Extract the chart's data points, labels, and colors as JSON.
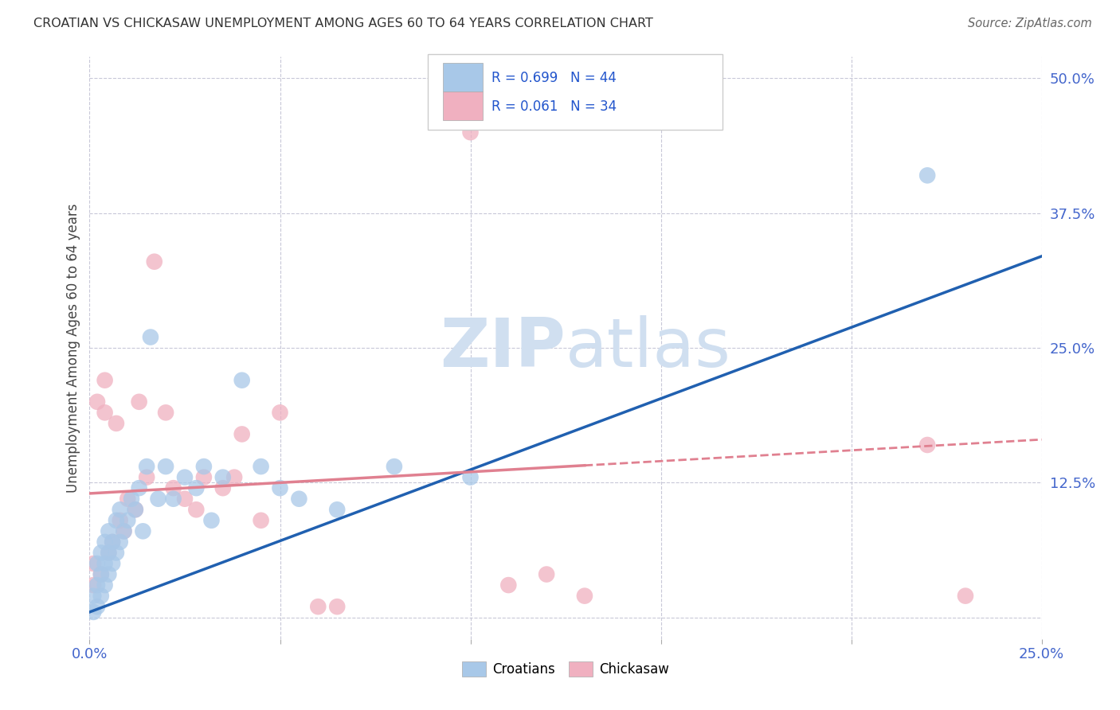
{
  "title": "CROATIAN VS CHICKASAW UNEMPLOYMENT AMONG AGES 60 TO 64 YEARS CORRELATION CHART",
  "source": "Source: ZipAtlas.com",
  "ylabel": "Unemployment Among Ages 60 to 64 years",
  "xlim": [
    0.0,
    0.25
  ],
  "ylim": [
    -0.02,
    0.52
  ],
  "xticks": [
    0.0,
    0.05,
    0.1,
    0.15,
    0.2,
    0.25
  ],
  "xtick_labels": [
    "0.0%",
    "",
    "",
    "",
    "",
    "25.0%"
  ],
  "yticks": [
    0.0,
    0.125,
    0.25,
    0.375,
    0.5
  ],
  "ytick_labels": [
    "",
    "12.5%",
    "25.0%",
    "37.5%",
    "50.0%"
  ],
  "croatian_color": "#a8c8e8",
  "chickasaw_color": "#f0b0c0",
  "croatian_line_color": "#2060b0",
  "chickasaw_line_color": "#e08090",
  "background_color": "#ffffff",
  "grid_color": "#c8c8d8",
  "watermark_color": "#d0dff0",
  "legend_R_croatian": "R = 0.699",
  "legend_N_croatian": "N = 44",
  "legend_R_chickasaw": "R = 0.061",
  "legend_N_chickasaw": "N = 34",
  "croatian_x": [
    0.001,
    0.001,
    0.002,
    0.002,
    0.002,
    0.003,
    0.003,
    0.003,
    0.004,
    0.004,
    0.004,
    0.005,
    0.005,
    0.005,
    0.006,
    0.006,
    0.007,
    0.007,
    0.008,
    0.008,
    0.009,
    0.01,
    0.011,
    0.012,
    0.013,
    0.014,
    0.015,
    0.016,
    0.018,
    0.02,
    0.022,
    0.025,
    0.028,
    0.03,
    0.032,
    0.035,
    0.04,
    0.045,
    0.05,
    0.055,
    0.065,
    0.08,
    0.1,
    0.22
  ],
  "croatian_y": [
    0.005,
    0.02,
    0.01,
    0.03,
    0.05,
    0.02,
    0.04,
    0.06,
    0.03,
    0.05,
    0.07,
    0.04,
    0.06,
    0.08,
    0.05,
    0.07,
    0.06,
    0.09,
    0.07,
    0.1,
    0.08,
    0.09,
    0.11,
    0.1,
    0.12,
    0.08,
    0.14,
    0.26,
    0.11,
    0.14,
    0.11,
    0.13,
    0.12,
    0.14,
    0.09,
    0.13,
    0.22,
    0.14,
    0.12,
    0.11,
    0.1,
    0.14,
    0.13,
    0.41
  ],
  "chickasaw_x": [
    0.001,
    0.001,
    0.002,
    0.003,
    0.004,
    0.004,
    0.005,
    0.006,
    0.007,
    0.008,
    0.009,
    0.01,
    0.012,
    0.013,
    0.015,
    0.017,
    0.02,
    0.022,
    0.025,
    0.028,
    0.03,
    0.035,
    0.038,
    0.04,
    0.045,
    0.05,
    0.06,
    0.065,
    0.1,
    0.11,
    0.12,
    0.13,
    0.22,
    0.23
  ],
  "chickasaw_y": [
    0.03,
    0.05,
    0.2,
    0.04,
    0.19,
    0.22,
    0.06,
    0.07,
    0.18,
    0.09,
    0.08,
    0.11,
    0.1,
    0.2,
    0.13,
    0.33,
    0.19,
    0.12,
    0.11,
    0.1,
    0.13,
    0.12,
    0.13,
    0.17,
    0.09,
    0.19,
    0.01,
    0.01,
    0.45,
    0.03,
    0.04,
    0.02,
    0.16,
    0.02
  ],
  "cr_line_x0": 0.0,
  "cr_line_y0": 0.005,
  "cr_line_x1": 0.25,
  "cr_line_y1": 0.335,
  "ch_line_x0": 0.0,
  "ch_line_y0": 0.115,
  "ch_line_x1": 0.25,
  "ch_line_y1": 0.165
}
